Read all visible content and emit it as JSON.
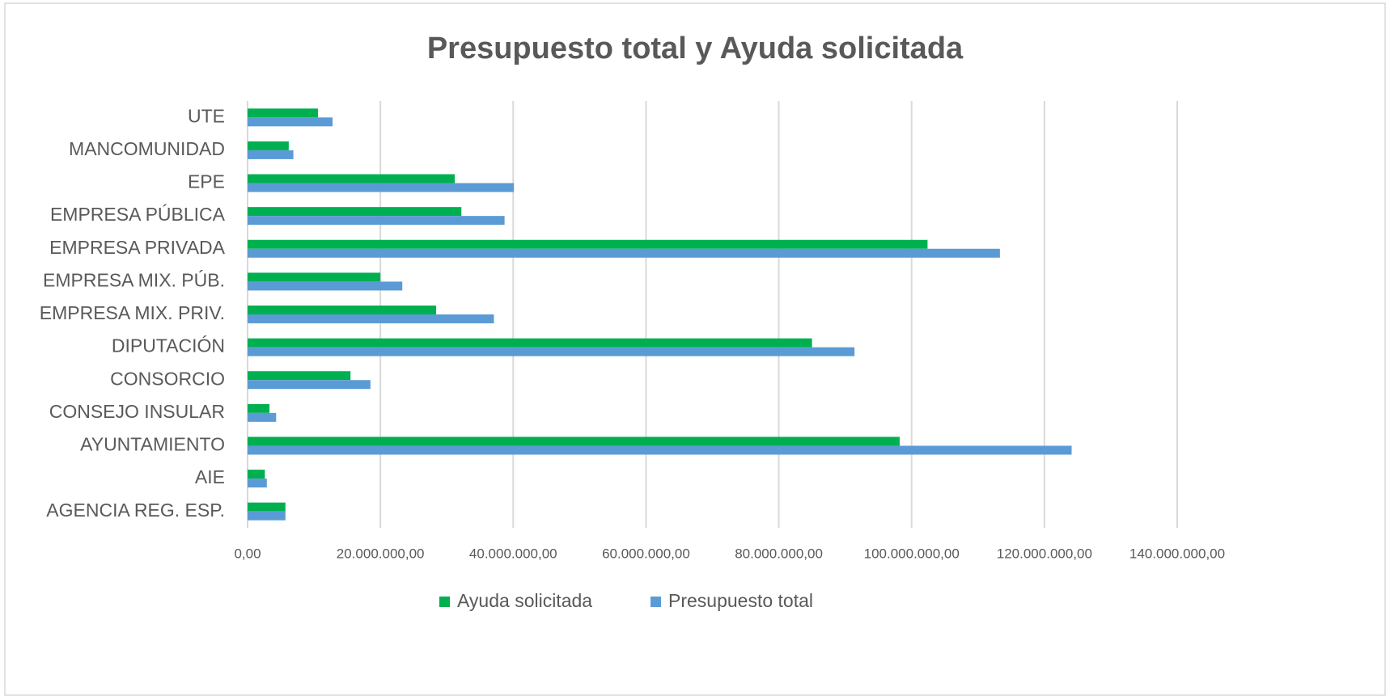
{
  "chart_data": {
    "type": "bar",
    "orientation": "horizontal",
    "title": "Presupuesto total y Ayuda solicitada",
    "categories": [
      "AGENCIA REG. ESP.",
      "AIE",
      "AYUNTAMIENTO",
      "CONSEJO INSULAR",
      "CONSORCIO",
      "DIPUTACIÓN",
      "EMPRESA MIX. PRIV.",
      "EMPRESA MIX. PÚB.",
      "EMPRESA PRIVADA",
      "EMPRESA PÚBLICA",
      "EPE",
      "MANCOMUNIDAD",
      "UTE"
    ],
    "series": [
      {
        "name": "Ayuda solicitada",
        "color": "#00b050",
        "values": [
          5700000,
          2600000,
          98200000,
          3300000,
          15500000,
          85000000,
          28400000,
          20000000,
          102400000,
          32200000,
          31200000,
          6200000,
          10600000
        ]
      },
      {
        "name": "Presupuesto total",
        "color": "#5b9bd5",
        "values": [
          5700000,
          2900000,
          124100000,
          4300000,
          18500000,
          91400000,
          37100000,
          23300000,
          113300000,
          38700000,
          40100000,
          6900000,
          12800000
        ]
      }
    ],
    "xlim": [
      0,
      140000000
    ],
    "xticks": [
      {
        "value": 0,
        "label": "0,00"
      },
      {
        "value": 20000000,
        "label": "20.000.000,00"
      },
      {
        "value": 40000000,
        "label": "40.000.000,00"
      },
      {
        "value": 60000000,
        "label": "60.000.000,00"
      },
      {
        "value": 80000000,
        "label": "80.000.000,00"
      },
      {
        "value": 100000000,
        "label": "100.000.000,00"
      },
      {
        "value": 120000000,
        "label": "120.000.000,00"
      },
      {
        "value": 140000000,
        "label": "140.000.000,00"
      }
    ],
    "grid": true,
    "legend": "bottom"
  }
}
